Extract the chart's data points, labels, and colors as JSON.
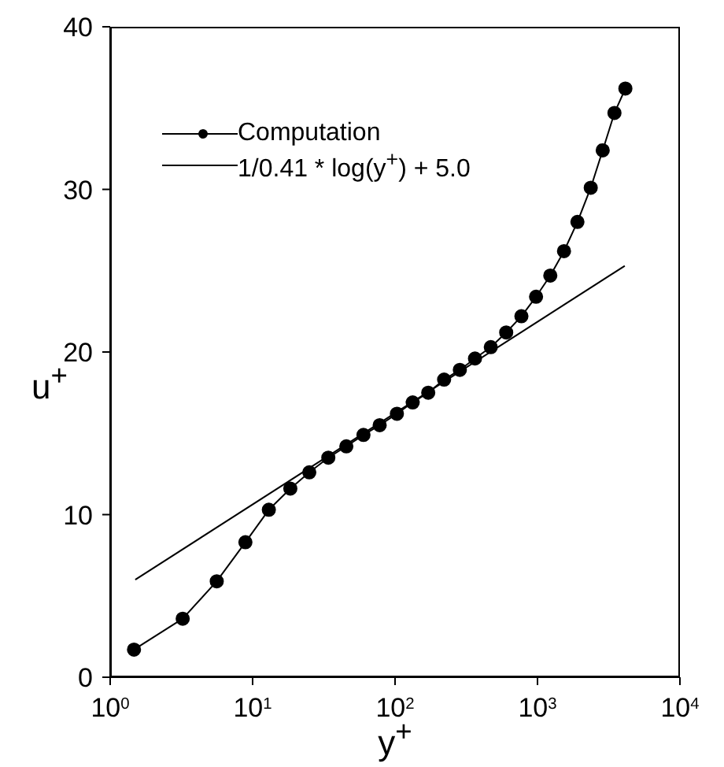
{
  "chart_data": {
    "type": "line",
    "xlabel": "y$^{+}$",
    "ylabel": "u$^{+}$",
    "log": "x",
    "xlim": [
      1,
      10000
    ],
    "ylim": [
      0,
      40
    ],
    "xticks": [
      {
        "value": 1,
        "label": "10$^{0}$"
      },
      {
        "value": 10,
        "label": "10$^{1}$"
      },
      {
        "value": 100,
        "label": "10$^{2}$"
      },
      {
        "value": 1000,
        "label": "10$^{3}$"
      },
      {
        "value": 10000,
        "label": "10$^{4}$"
      }
    ],
    "yticks": [
      0,
      10,
      20,
      30,
      40
    ],
    "grid": false,
    "legend": "top left",
    "series": [
      {
        "name": "Computation",
        "color": "#000000",
        "marker": "circle",
        "line_style": "solid",
        "x": [
          1.47,
          3.23,
          5.6,
          8.9,
          13,
          18.4,
          25,
          34,
          45.5,
          60,
          78,
          103,
          133,
          171,
          221,
          285,
          364,
          470,
          603,
          771,
          977,
          1230,
          1535,
          1907,
          2365,
          2870,
          3470,
          4140
        ],
        "values": [
          1.7,
          3.6,
          5.9,
          8.3,
          10.3,
          11.6,
          12.6,
          13.5,
          14.2,
          14.9,
          15.5,
          16.2,
          16.9,
          17.5,
          18.3,
          18.9,
          19.6,
          20.3,
          21.2,
          22.2,
          23.4,
          24.7,
          26.2,
          28.0,
          30.1,
          32.4,
          34.7,
          36.2
        ]
      },
      {
        "name": "1/0.41 * log(y$^{+}$) + 5.0",
        "color": "#000000",
        "marker": "none",
        "line_style": "solid",
        "x": [
          1.5,
          4100
        ],
        "values": [
          6.0,
          25.3
        ]
      }
    ]
  }
}
